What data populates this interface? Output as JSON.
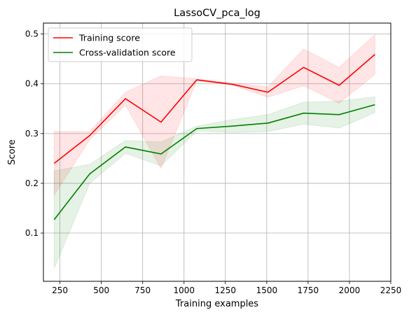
{
  "chart_data": {
    "type": "line",
    "title": "LassoCV_pca_log",
    "xlabel": "Training examples",
    "ylabel": "Score",
    "xlim": [
      150,
      2250
    ],
    "ylim": [
      0.003,
      0.522
    ],
    "xticks": [
      250,
      500,
      750,
      1000,
      1250,
      1500,
      1750,
      2000,
      2250
    ],
    "yticks": [
      0.1,
      0.2,
      0.3,
      0.4,
      0.5
    ],
    "xtick_labels": [
      "250",
      "500",
      "750",
      "1000",
      "1250",
      "1500",
      "1750",
      "2000",
      "2250"
    ],
    "ytick_labels": [
      "0.1",
      "0.2",
      "0.3",
      "0.4",
      "0.5"
    ],
    "grid": true,
    "legend": "top-left",
    "x": [
      215,
      430,
      646,
      861,
      1077,
      1292,
      1507,
      1723,
      1938,
      2154
    ],
    "series": [
      {
        "name": "Training score",
        "color": "#ff0000",
        "values": [
          0.24,
          0.296,
          0.37,
          0.323,
          0.408,
          0.399,
          0.383,
          0.433,
          0.397,
          0.459
        ],
        "band_upper": [
          0.304,
          0.304,
          0.383,
          0.416,
          0.41,
          0.401,
          0.394,
          0.47,
          0.433,
          0.499
        ],
        "band_lower": [
          0.176,
          0.288,
          0.357,
          0.23,
          0.406,
          0.397,
          0.373,
          0.396,
          0.361,
          0.419
        ]
      },
      {
        "name": "Cross-validation score",
        "color": "#008000",
        "values": [
          0.127,
          0.219,
          0.273,
          0.259,
          0.31,
          0.315,
          0.321,
          0.341,
          0.338,
          0.358
        ],
        "band_upper": [
          0.225,
          0.238,
          0.286,
          0.283,
          0.315,
          0.328,
          0.338,
          0.363,
          0.365,
          0.374
        ],
        "band_lower": [
          0.029,
          0.2,
          0.26,
          0.235,
          0.305,
          0.302,
          0.304,
          0.319,
          0.311,
          0.342
        ]
      }
    ]
  }
}
